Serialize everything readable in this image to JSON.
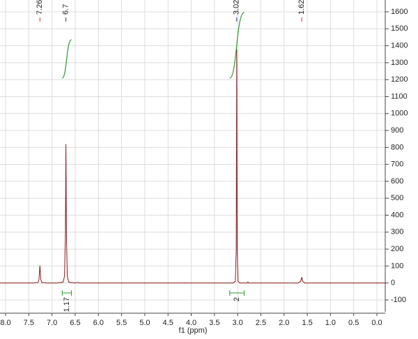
{
  "chart_data": {
    "type": "line",
    "x_label": "f1 (ppm)",
    "x": [
      8.12,
      7.4,
      7.3,
      7.28,
      7.26,
      7.24,
      7.22,
      7.1,
      6.9,
      6.76,
      6.73,
      6.71,
      6.7,
      6.69,
      6.67,
      6.64,
      6.5,
      6.45,
      6.4,
      3.4,
      3.1,
      3.05,
      3.03,
      3.02,
      3.01,
      2.99,
      2.95,
      2.8,
      2.78,
      2.76,
      1.7,
      1.64,
      1.62,
      1.6,
      1.55,
      -0.18
    ],
    "series": [
      {
        "color": "#8b1a1a",
        "values": [
          0,
          0,
          3,
          20,
          103,
          20,
          3,
          0,
          0,
          5,
          40,
          300,
          820,
          300,
          40,
          5,
          0,
          3,
          0,
          0,
          0,
          10,
          200,
          1380,
          200,
          10,
          0,
          0,
          6,
          0,
          0,
          10,
          35,
          10,
          0,
          0
        ]
      }
    ],
    "peaks": [
      {
        "value": 7.26,
        "color": "#d62728"
      },
      {
        "value": 6.7,
        "color": "#2233aa"
      },
      {
        "value": 3.02,
        "color": "#2233aa"
      },
      {
        "value": 1.62,
        "color": "#d62728"
      }
    ],
    "integrals": [
      {
        "from": 6.78,
        "to": 6.58,
        "value": 1.17
      },
      {
        "from": 3.17,
        "to": 2.86,
        "value": 2.0
      }
    ],
    "integral_color": "#2a9a2a",
    "xlim": [
      8.12,
      -0.18
    ],
    "ylim": [
      -170,
      1670
    ],
    "xticks": [
      {
        "value": 8,
        "label": "8.0"
      },
      7.5,
      {
        "value": 7,
        "label": "7.0"
      },
      6.5,
      {
        "value": 6,
        "label": "6.0"
      },
      5.5,
      {
        "value": 5,
        "label": "5.0"
      },
      4.5,
      {
        "value": 4,
        "label": "4.0"
      },
      3.5,
      {
        "value": 3,
        "label": "3.0"
      },
      2.5,
      {
        "value": 2,
        "label": "2.0"
      },
      1.5,
      {
        "value": 1,
        "label": "1.0"
      },
      0.5,
      {
        "value": 0,
        "label": "0.0"
      }
    ],
    "yticks": [
      -100,
      0,
      100,
      200,
      300,
      400,
      500,
      600,
      700,
      800,
      900,
      1000,
      1100,
      1200,
      1300,
      1400,
      1500,
      1600
    ],
    "grid": true
  }
}
